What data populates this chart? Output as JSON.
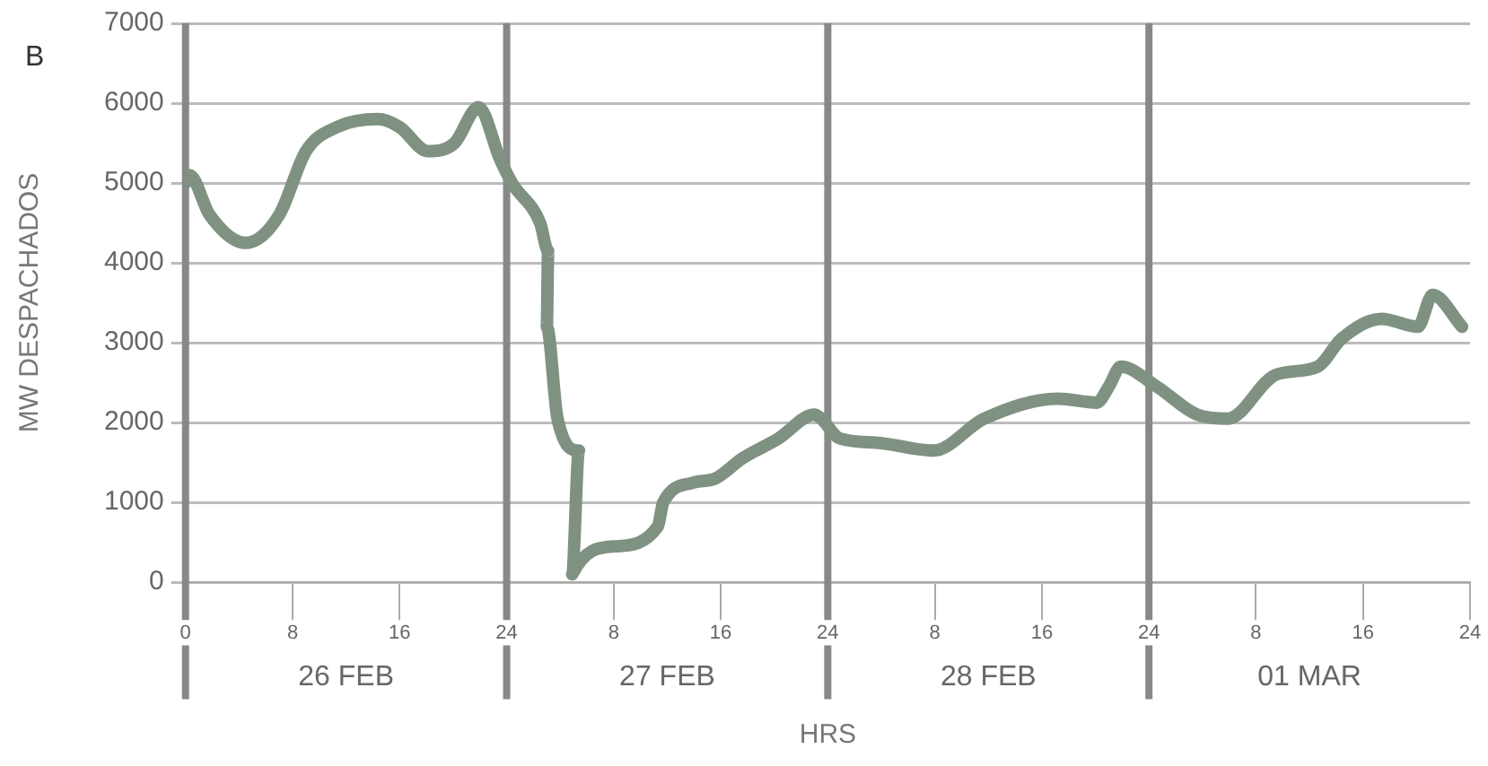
{
  "chart_data": {
    "type": "line",
    "xlabel": "HRS",
    "ylabel": "MW DESPACHADOS",
    "annotations": [
      "B"
    ],
    "x": [
      "--02-26T00:00",
      "--02-26T00:18",
      "--02-26T01:48",
      "--02-26T04:30",
      "--02-26T07:00",
      "--02-26T09:00",
      "--02-26T11:18",
      "--02-26T14:24",
      "--02-26T16:00",
      "--02-26T18:06",
      "--02-26T20:06",
      "--02-26T21:54",
      "--02-26T23:30",
      "--02-27T00:24",
      "--02-27T02:30",
      "--02-27T03:06",
      "--02-27T03:00",
      "--02-27T03:48",
      "--02-27T05:24",
      "--02-27T04:54",
      "--02-27T08:06",
      "--02-27T11:18",
      "--02-27T11:42",
      "--02-27T14:00",
      "--02-27T15:36",
      "--02-27T17:36",
      "--02-27T20:18",
      "--02-27T23:00",
      "--02-27T23:30",
      "--02-28T00:54",
      "--02-28T03:36",
      "--02-28T07:54",
      "--02-28T11:42",
      "--02-28T17:12",
      "--02-28T20:06",
      "--02-28T21:00",
      "--02-28T21:54",
      "--03-01T00:36",
      "--03-01T03:36",
      "--03-01T05:54",
      "--03-01T09:30",
      "--03-01T12:36",
      "--03-01T14:24",
      "--03-01T17:24",
      "--03-01T20:06",
      "--03-01T21:12",
      "--03-01T23:24"
    ],
    "series": [
      {
        "color": "#7f9282",
        "values": [
          5000,
          5100,
          4600,
          4250,
          4600,
          5400,
          5700,
          5800,
          5700,
          5400,
          5500,
          5950,
          5300,
          5000,
          4500,
          4150,
          3200,
          2050,
          1650,
          100,
          450,
          700,
          1000,
          1250,
          1300,
          1550,
          1800,
          2100,
          2050,
          1800,
          1750,
          1650,
          2050,
          2300,
          2250,
          2450,
          2700,
          2450,
          2100,
          2050,
          2600,
          2700,
          3050,
          3300,
          3200,
          3600,
          3200
        ]
      }
    ],
    "xlim": [
      "--02-26T00:00",
      "--03-02T00:00"
    ],
    "xticks": [
      {
        "value": "--02-26T00:00",
        "label": "0"
      },
      {
        "value": "--02-26T08:00",
        "label": "8"
      },
      {
        "value": "--02-26T16:00",
        "label": "16"
      },
      {
        "value": "--02-27T00:00",
        "label": "24"
      },
      {
        "value": "--02-27T08:00",
        "label": "8"
      },
      {
        "value": "--02-27T16:00",
        "label": "16"
      },
      {
        "value": "--02-28T00:00",
        "label": "24"
      },
      {
        "value": "--02-28T08:00",
        "label": "8"
      },
      {
        "value": "--02-28T16:00",
        "label": "16"
      },
      {
        "value": "--03-01T00:00",
        "label": "24"
      },
      {
        "value": "--03-01T08:00",
        "label": "8"
      },
      {
        "value": "--03-01T16:00",
        "label": "16"
      },
      {
        "value": "--03-02T00:00",
        "label": "24"
      }
    ],
    "x2lim": [
      "--02-26T00:00",
      "--03-02T00:00"
    ],
    "x2ticks": [
      {
        "value": "--02-26T12:00",
        "label": "26 FEB"
      },
      {
        "value": "--02-27T12:00",
        "label": "27 FEB"
      },
      {
        "value": "--02-28T12:00",
        "label": "28 FEB"
      },
      {
        "value": "--03-01T12:00",
        "label": "01 MAR"
      }
    ],
    "ylim": [
      0,
      7000
    ],
    "yticks": [
      0,
      1000,
      2000,
      3000,
      4000,
      5000,
      6000,
      7000
    ],
    "grid": "y",
    "line_style": "solid",
    "ref_lines": [
      {
        "axis": "x",
        "value": "--02-27T00:00",
        "color": "#888888"
      },
      {
        "axis": "x",
        "value": "--02-28T00:00",
        "color": "#888888"
      },
      {
        "axis": "x",
        "value": "--03-01T00:00",
        "color": "#888888"
      }
    ]
  }
}
